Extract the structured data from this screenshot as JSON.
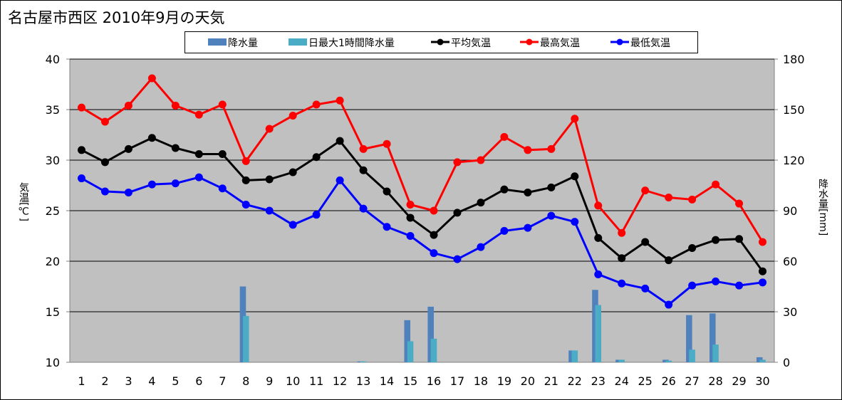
{
  "title": "名古屋市西区  2010年9月の天気",
  "legend": [
    "降水量",
    "日最大1時間降水量",
    "平均気温",
    "最高気温",
    "最低気温"
  ],
  "colors": {
    "precip": "#4f81bd",
    "max_hour_precip": "#4bacc6",
    "avg_temp": "#000000",
    "max_temp": "#ff0000",
    "min_temp": "#0000ff",
    "plot_bg": "#c0c0c0"
  },
  "chart_data": {
    "type": "bar+line",
    "title": "名古屋市西区  2010年9月の天気",
    "categories": [
      1,
      2,
      3,
      4,
      5,
      6,
      7,
      8,
      9,
      10,
      11,
      12,
      13,
      14,
      15,
      16,
      17,
      18,
      19,
      20,
      21,
      22,
      23,
      24,
      25,
      26,
      27,
      28,
      29,
      30
    ],
    "ylabel": "気温[℃]",
    "y2label": "降水量[mm]",
    "ylim": [
      10,
      40
    ],
    "y2lim": [
      0,
      180
    ],
    "yticks": [
      10,
      15,
      20,
      25,
      30,
      35,
      40
    ],
    "y2ticks": [
      0,
      30,
      60,
      90,
      120,
      150,
      180
    ],
    "grid": true,
    "legend_position": "top",
    "bar_series": [
      {
        "name": "降水量",
        "axis": "right",
        "values": [
          0,
          0,
          0,
          0,
          0,
          0,
          0,
          45,
          0,
          0,
          0,
          0,
          0.5,
          0,
          25,
          33,
          0,
          0,
          0,
          0,
          0,
          7,
          43,
          1.5,
          0,
          1.5,
          28,
          29,
          0,
          3
        ]
      },
      {
        "name": "日最大1時間降水量",
        "axis": "right",
        "values": [
          0,
          0,
          0,
          0,
          0,
          0,
          0,
          27.5,
          0,
          0,
          0,
          0,
          0.5,
          0,
          12.5,
          14,
          0,
          0,
          0,
          0,
          0,
          7,
          34,
          1.5,
          0,
          1,
          7.5,
          10.5,
          0,
          1.5
        ]
      }
    ],
    "line_series": [
      {
        "name": "平均気温",
        "axis": "left",
        "values": [
          31.0,
          29.8,
          31.1,
          32.2,
          31.2,
          30.6,
          30.6,
          28.0,
          28.1,
          28.8,
          30.3,
          31.9,
          29.0,
          26.9,
          24.3,
          22.6,
          24.8,
          25.8,
          27.1,
          26.8,
          27.3,
          28.4,
          22.3,
          20.3,
          21.9,
          20.1,
          21.3,
          22.1,
          22.2,
          19.0
        ]
      },
      {
        "name": "最高気温",
        "axis": "left",
        "values": [
          35.2,
          33.8,
          35.4,
          38.1,
          35.4,
          34.5,
          35.5,
          29.9,
          33.1,
          34.4,
          35.5,
          35.9,
          31.1,
          31.6,
          25.6,
          25.0,
          29.8,
          30.0,
          32.3,
          31.0,
          31.1,
          34.1,
          25.5,
          22.8,
          27.0,
          26.3,
          26.1,
          27.6,
          25.7,
          21.9
        ]
      },
      {
        "name": "最低気温",
        "axis": "left",
        "values": [
          28.2,
          26.9,
          26.8,
          27.6,
          27.7,
          28.3,
          27.2,
          25.6,
          25.0,
          23.6,
          24.6,
          28.0,
          25.2,
          23.4,
          22.5,
          20.8,
          20.2,
          21.4,
          23.0,
          23.3,
          24.5,
          23.9,
          18.7,
          17.8,
          17.3,
          15.7,
          17.6,
          18.0,
          17.6,
          17.9
        ]
      }
    ]
  }
}
